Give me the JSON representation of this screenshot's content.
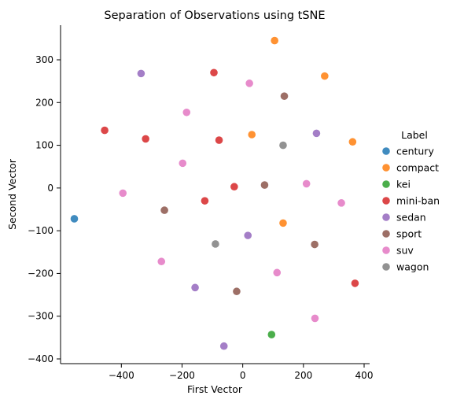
{
  "chart_data": {
    "type": "scatter",
    "title": "Separation of Observations using tSNE",
    "xlabel": "First Vector",
    "ylabel": "Second Vector",
    "xlim": [
      -600,
      420
    ],
    "ylim": [
      -410,
      380
    ],
    "xticks": [
      -400,
      -200,
      0,
      200,
      400
    ],
    "yticks": [
      -400,
      -300,
      -200,
      -100,
      0,
      100,
      200,
      300
    ],
    "grid": false,
    "legend": {
      "title": "Label",
      "placement": "right"
    },
    "series": [
      {
        "name": "century",
        "color": "#1f77b4",
        "points": [
          [
            -555,
            -72
          ]
        ]
      },
      {
        "name": "compact",
        "color": "#ff7f0e",
        "points": [
          [
            105,
            345
          ],
          [
            270,
            262
          ],
          [
            30,
            125
          ],
          [
            362,
            108
          ],
          [
            133,
            -82
          ]
        ]
      },
      {
        "name": "kei",
        "color": "#2ca02c",
        "points": [
          [
            95,
            -343
          ]
        ]
      },
      {
        "name": "mini-ban",
        "color": "#d62728",
        "points": [
          [
            -95,
            270
          ],
          [
            -455,
            135
          ],
          [
            -320,
            115
          ],
          [
            -78,
            112
          ],
          [
            -28,
            3
          ],
          [
            -125,
            -30
          ],
          [
            370,
            -223
          ]
        ]
      },
      {
        "name": "sedan",
        "color": "#9467bd",
        "points": [
          [
            -335,
            268
          ],
          [
            243,
            128
          ],
          [
            17,
            -111
          ],
          [
            -157,
            -233
          ],
          [
            -62,
            -370
          ]
        ]
      },
      {
        "name": "sport",
        "color": "#8c564b",
        "points": [
          [
            137,
            215
          ],
          [
            72,
            7
          ],
          [
            -258,
            -52
          ],
          [
            237,
            -132
          ],
          [
            -20,
            -242
          ]
        ]
      },
      {
        "name": "suv",
        "color": "#e377c2",
        "points": [
          [
            22,
            245
          ],
          [
            -185,
            177
          ],
          [
            -198,
            58
          ],
          [
            210,
            10
          ],
          [
            -395,
            -12
          ],
          [
            325,
            -35
          ],
          [
            -268,
            -172
          ],
          [
            113,
            -198
          ],
          [
            238,
            -305
          ]
        ]
      },
      {
        "name": "wagon",
        "color": "#7f7f7f",
        "points": [
          [
            133,
            100
          ],
          [
            -90,
            -131
          ]
        ]
      }
    ]
  }
}
